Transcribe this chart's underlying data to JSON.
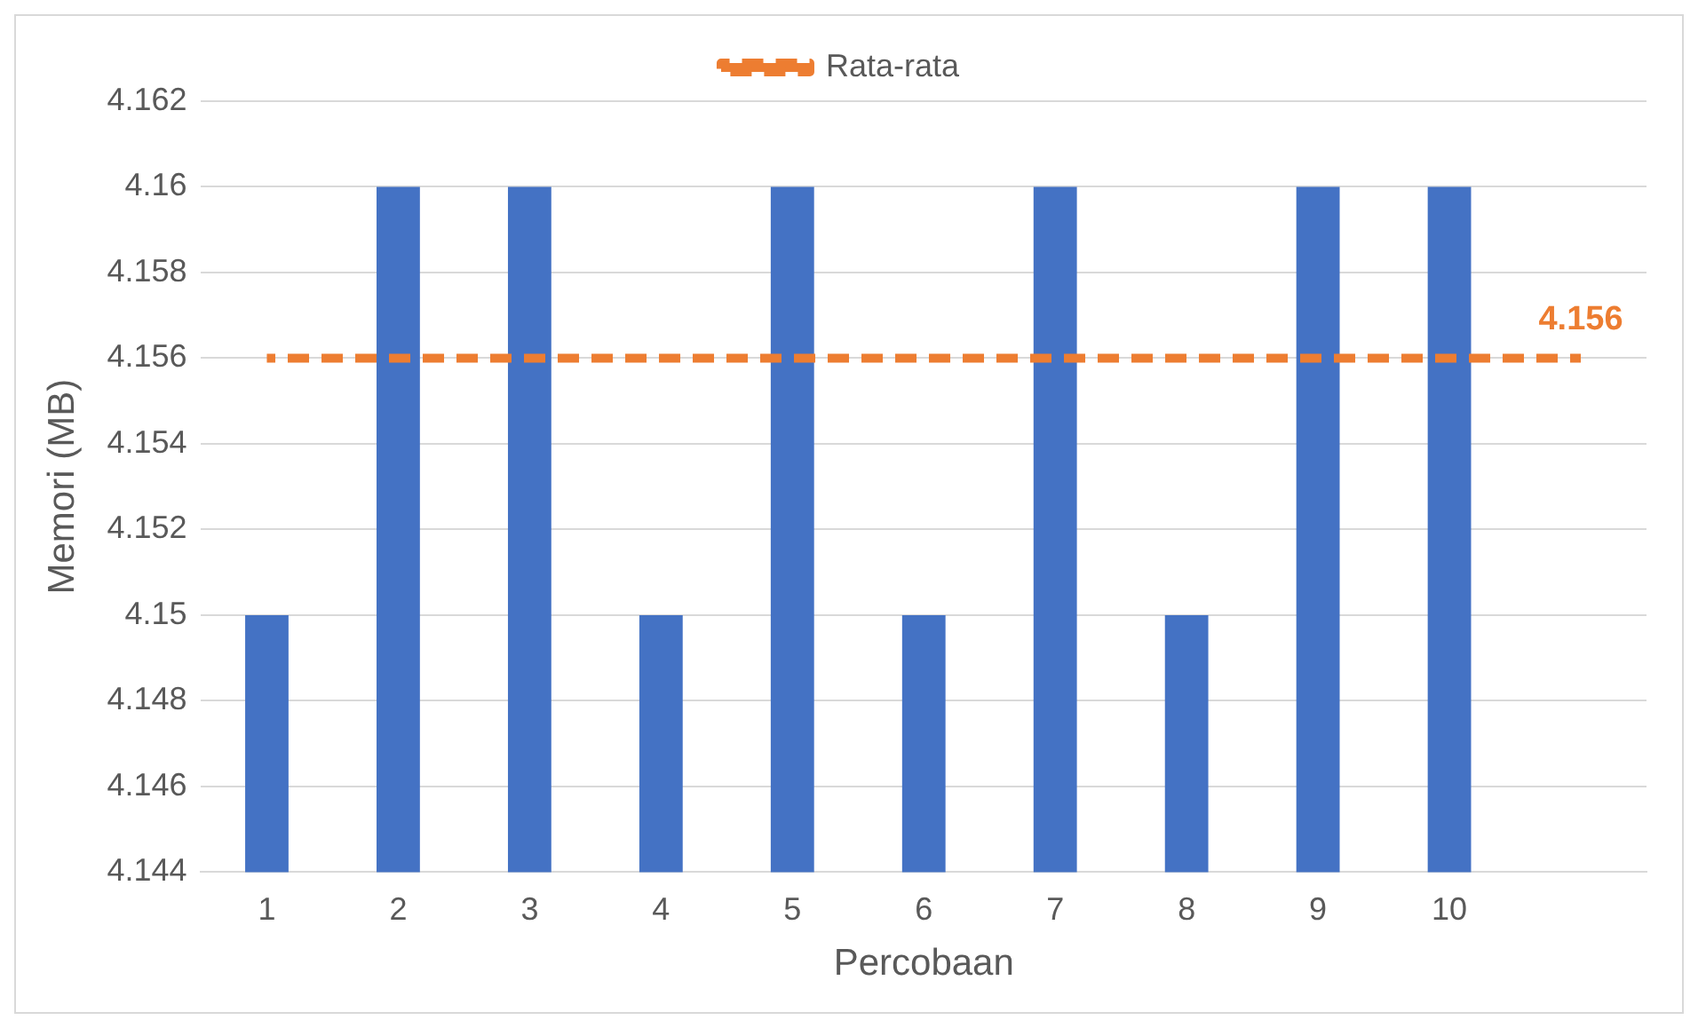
{
  "chart_data": {
    "type": "bar",
    "xlabel": "Percobaan",
    "ylabel": "Memori (MB)",
    "categories": [
      "1",
      "2",
      "3",
      "4",
      "5",
      "6",
      "7",
      "8",
      "9",
      "10",
      null
    ],
    "series": [
      {
        "color": "#4472c4",
        "values": [
          4.15,
          4.16,
          4.16,
          4.15,
          4.16,
          4.15,
          4.16,
          4.15,
          4.16,
          4.16,
          null
        ]
      },
      {
        "type": "line",
        "name": "Rata-rata",
        "color": "#ed7d31",
        "line_style": "dashed",
        "marker": "none",
        "values": [
          4.156,
          4.156,
          4.156,
          4.156,
          4.156,
          4.156,
          4.156,
          4.156,
          4.156,
          4.156,
          4.156
        ],
        "value_labels": [
          null,
          null,
          null,
          null,
          null,
          null,
          null,
          null,
          null,
          null,
          "4.156"
        ]
      }
    ],
    "ylim": [
      4.144,
      4.162
    ],
    "yticks": [
      4.144,
      4.146,
      4.148,
      4.15,
      4.152,
      4.154,
      4.156,
      4.158,
      4.16,
      4.162
    ],
    "grid": "y",
    "legend": "top"
  }
}
